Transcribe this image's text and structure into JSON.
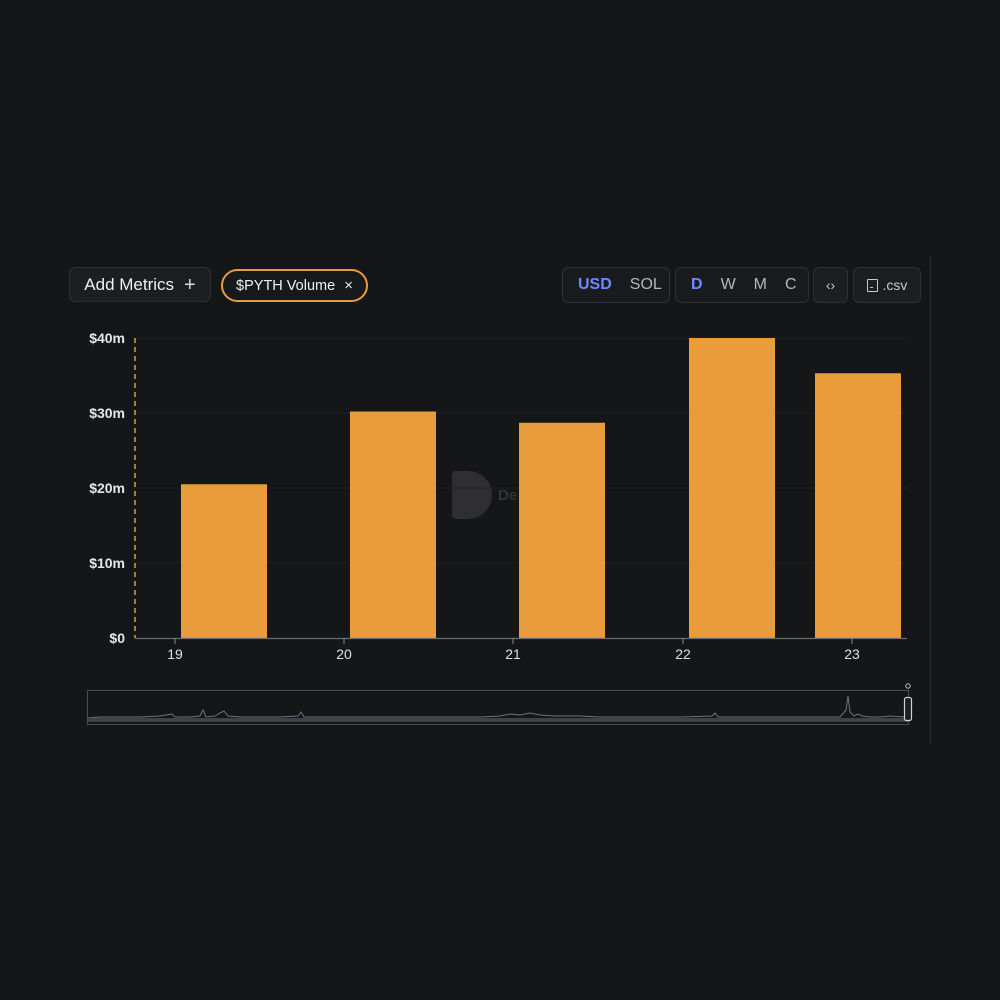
{
  "toolbar": {
    "add_metrics_label": "Add Metrics",
    "add_icon": "+",
    "metric_chip_label": "$PYTH Volume",
    "chip_close_icon": "×",
    "currency_options": [
      "USD",
      "SOL"
    ],
    "currency_selected": "USD",
    "interval_options": [
      "D",
      "W",
      "M",
      "C"
    ],
    "interval_selected": "D",
    "embed_label": "‹›",
    "csv_label": ".csv"
  },
  "watermark": {
    "text": "De"
  },
  "colors": {
    "bar": "#e89c3b",
    "accent": "#6b8cff",
    "background": "#151618"
  },
  "chart_data": {
    "type": "bar",
    "categories": [
      "19",
      "20",
      "21",
      "22",
      "23"
    ],
    "series": [
      {
        "values": [
          20.5,
          30.2,
          28.7,
          40.0,
          35.3
        ]
      }
    ],
    "ylim": [
      0,
      40
    ],
    "yticks": [
      0,
      10,
      20,
      30,
      40
    ],
    "ytick_labels": [
      "$0",
      "$10m",
      "$20m",
      "$30m",
      "$40m"
    ],
    "unit": "m",
    "grid": true,
    "legend": "none"
  }
}
